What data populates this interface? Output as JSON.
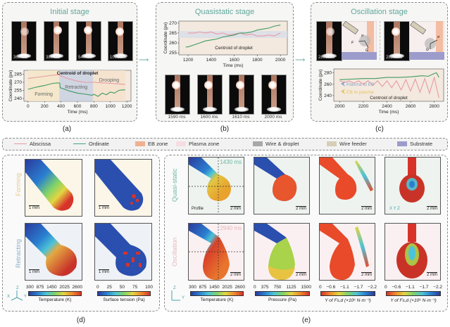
{
  "panels": {
    "a": {
      "title": "Initial stage",
      "label": "(a)",
      "frames": [
        "360 ms",
        "380 ms",
        "540 ms",
        "1090 ms"
      ]
    },
    "b": {
      "title": "Quasistatic stage",
      "label": "(b)",
      "frames": [
        "1590 ms",
        "1600 ms",
        "1610 ms",
        "2000 ms"
      ]
    },
    "c": {
      "title": "Oscillation stage",
      "label": "(c)",
      "frames": [
        "2800 ms",
        "2820 ms"
      ],
      "force_labels": {
        "sigma": "σ",
        "f": "F",
        "f_sub": "s,d",
        "g": "G"
      }
    },
    "d": {
      "label": "(d)",
      "rows": [
        "Forming",
        "Retracting"
      ],
      "scale": "1 mm",
      "axes": {
        "x": "X",
        "y": "Y",
        "z": "Z"
      },
      "colorbars": [
        {
          "ticks": [
            "300",
            "875",
            "1450",
            "2025",
            "2600"
          ],
          "label": "Temperature (K)"
        },
        {
          "ticks": [
            "0",
            "25",
            "50",
            "75",
            "100"
          ],
          "label": "Surface tension (Pa)"
        }
      ]
    },
    "e": {
      "label": "(e)",
      "rows": [
        "Quasi-static",
        "Oscillation"
      ],
      "times": [
        "1430 ms",
        "2940 ms"
      ],
      "profile": "Profile",
      "scale": "2 mm",
      "axes": {
        "x": "X",
        "y": "Y",
        "z": "Z"
      },
      "colorbars": [
        {
          "ticks": [
            "300",
            "875",
            "1450",
            "2025",
            "2600"
          ],
          "label": "Temperature (K)"
        },
        {
          "ticks": [
            "0",
            "375",
            "750",
            "1125",
            "1500"
          ],
          "label": "Pressure (Pa)"
        },
        {
          "ticks": [
            "0",
            "−0.6",
            "−1.1",
            "−1.7",
            "−2.2"
          ],
          "label": "Y of Fs,d (×10⁶ N·m⁻³)"
        },
        {
          "ticks": [
            "0",
            "−0.6",
            "−1.1",
            "−1.7",
            "−2.2"
          ],
          "label": "Y of Fs,d (×10⁶ N·m⁻³)"
        }
      ]
    }
  },
  "legend": {
    "items": [
      {
        "label": "Abscissa",
        "type": "line",
        "color": "#e99aa3"
      },
      {
        "label": "Ordinate",
        "type": "line",
        "color": "#4aa37a"
      },
      {
        "label": "EB zone",
        "type": "swatch",
        "color": "#f0b08f"
      },
      {
        "label": "Plasma zone",
        "type": "swatch",
        "color": "#f6dde2"
      },
      {
        "label": "Wire & droplet",
        "type": "swatch",
        "color": "#a8a8a8"
      },
      {
        "label": "Wire feeder",
        "type": "swatch",
        "color": "#d7ceb8"
      },
      {
        "label": "Substrate",
        "type": "swatch",
        "color": "#9c9ccc"
      }
    ]
  },
  "chart_data": [
    {
      "id": "a",
      "type": "line",
      "title": "Centroid of droplet",
      "xlabel": "Time (ms)",
      "ylabel": "Coordinate (px)",
      "xlim": [
        -50,
        1250
      ],
      "ylim": [
        235,
        292
      ],
      "xticks": [
        0,
        200,
        400,
        600,
        800,
        1000,
        1200
      ],
      "yticks": [
        240,
        255,
        270,
        285
      ],
      "regions": [
        {
          "label": "Forming",
          "x": [
            0,
            380
          ],
          "color": "#f3e6c8"
        },
        {
          "label": "Retracting",
          "x": [
            380,
            790
          ],
          "color": "#c9d1e3"
        },
        {
          "label": "Drooping",
          "x": [
            790,
            1180
          ],
          "color": "#f4e2cd"
        }
      ],
      "series": [
        {
          "name": "Abscissa",
          "color": "#e99aa3",
          "x": [
            0,
            100,
            200,
            300,
            370,
            390,
            500,
            600,
            700,
            800,
            900,
            1000,
            1100,
            1180
          ],
          "y": [
            277,
            279,
            281,
            283,
            284,
            282,
            276,
            272,
            270,
            270,
            269,
            268,
            267,
            266
          ]
        },
        {
          "name": "Ordinate",
          "color": "#3f9a62",
          "x": [
            0,
            100,
            200,
            300,
            370,
            385,
            390,
            500,
            600,
            700,
            780,
            800,
            850,
            900,
            950,
            1000,
            1050,
            1100,
            1150,
            1180
          ],
          "y": [
            257,
            261,
            264,
            268,
            269,
            268,
            260,
            254,
            250,
            248,
            246,
            248,
            244,
            250,
            247,
            252,
            250,
            255,
            256,
            256
          ]
        }
      ]
    },
    {
      "id": "b",
      "type": "line",
      "title": "Centroid of droplet",
      "xlabel": "Time (ms)",
      "ylabel": "Coordinate (px)",
      "xlim": [
        1120,
        2060
      ],
      "ylim": [
        254,
        271
      ],
      "xticks": [
        1200,
        1400,
        1600,
        1800,
        2000
      ],
      "yticks": [
        255,
        260,
        265,
        270
      ],
      "bands": [
        {
          "label": "Plasma zone",
          "y": [
            262.5,
            266
          ],
          "color": "#d8dde8"
        }
      ],
      "series": [
        {
          "name": "Abscissa",
          "color": "#e99aa3",
          "x": [
            1200,
            1250,
            1300,
            1350,
            1400,
            1450,
            1500,
            1550,
            1600,
            1650,
            1700,
            1750,
            1800,
            1850,
            1900,
            1950,
            2000
          ],
          "y": [
            265,
            265,
            265.5,
            265,
            265.5,
            264.5,
            265,
            264,
            264.5,
            265,
            264,
            264.5,
            263.5,
            263.5,
            264,
            263.5,
            265
          ]
        },
        {
          "name": "Ordinate",
          "color": "#3f9a62",
          "x": [
            1180,
            1200,
            1250,
            1300,
            1350,
            1400,
            1450,
            1500,
            1550,
            1600,
            1650,
            1700,
            1750,
            1800,
            1850,
            1900,
            1950,
            2000
          ],
          "y": [
            258,
            258,
            259,
            260,
            261,
            261.5,
            262,
            263,
            263.5,
            264,
            265,
            265,
            265.5,
            266.5,
            267,
            267.5,
            268.5,
            269
          ]
        }
      ]
    },
    {
      "id": "c",
      "type": "line",
      "title": "Centroid of droplet",
      "xlabel": "Time (ms)",
      "ylabel": "Coordinate (px)",
      "xlim": [
        1950,
        2880
      ],
      "ylim": [
        230,
        287
      ],
      "xticks": [
        2000,
        2200,
        2400,
        2600,
        2800
      ],
      "yticks": [
        240,
        260,
        280
      ],
      "annotations": [
        {
          "label": "Plasma to EB",
          "color": "#8aa6cf"
        },
        {
          "label": "EB to plasma",
          "color": "#e8c165"
        }
      ],
      "series": [
        {
          "name": "Ordinate",
          "color": "#3f9a62",
          "x": [
            2000,
            2100,
            2200,
            2300,
            2400,
            2500,
            2600,
            2700,
            2750,
            2800,
            2820,
            2840
          ],
          "y": [
            268,
            269,
            270,
            270,
            272,
            272,
            273,
            275,
            274,
            279,
            280,
            272
          ]
        },
        {
          "name": "Abscissa",
          "color": "#e99aa3",
          "x": [
            2000,
            2040,
            2080,
            2120,
            2160,
            2200,
            2240,
            2280,
            2320,
            2360,
            2400,
            2440,
            2480,
            2520,
            2560,
            2600,
            2640,
            2680,
            2720,
            2760,
            2800,
            2840
          ],
          "y": [
            266,
            263,
            266,
            262,
            266,
            260,
            266,
            258,
            266,
            256,
            266,
            254,
            266,
            250,
            268,
            248,
            269,
            246,
            270,
            244,
            272,
            236
          ]
        }
      ]
    }
  ]
}
